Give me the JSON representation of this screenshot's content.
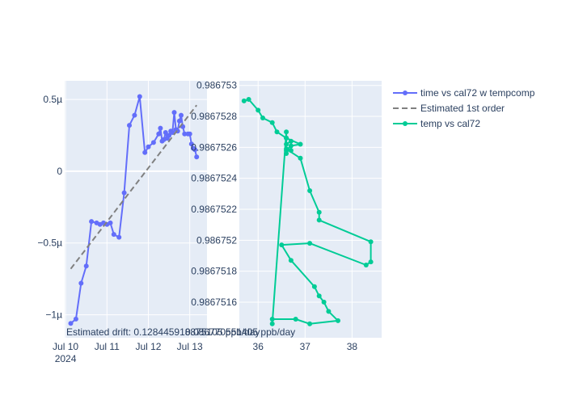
{
  "chart_data": [
    {
      "type": "line",
      "panel": "left",
      "x_type": "date",
      "xlim": [
        "2024-07-09T23:30",
        "2024-07-13T10:00"
      ],
      "ylim": [
        -1.16,
        0.63
      ],
      "y_ticks": [
        {
          "value": 0.5,
          "label": "0.5µ"
        },
        {
          "value": 0,
          "label": "0"
        },
        {
          "value": -0.5,
          "label": "−0.5µ"
        },
        {
          "value": -1,
          "label": "−1µ"
        }
      ],
      "x_ticks": [
        {
          "value": "2024-07-10T00:00",
          "label": "Jul 10",
          "sublabel": "2024"
        },
        {
          "value": "2024-07-11T00:00",
          "label": "Jul 11"
        },
        {
          "value": "2024-07-12T00:00",
          "label": "Jul 12"
        },
        {
          "value": "2024-07-13T00:00",
          "label": "Jul 13"
        }
      ],
      "series": [
        {
          "name": "time vs cal72 w tempcomp",
          "color": "#636efa",
          "mode": "lines+markers",
          "points": [
            [
              "2024-07-10T03:00",
              -1.06
            ],
            [
              "2024-07-10T06:00",
              -1.03
            ],
            [
              "2024-07-10T09:00",
              -0.78
            ],
            [
              "2024-07-10T12:00",
              -0.66
            ],
            [
              "2024-07-10T15:00",
              -0.35
            ],
            [
              "2024-07-10T18:00",
              -0.36
            ],
            [
              "2024-07-10T20:00",
              -0.37
            ],
            [
              "2024-07-10T22:00",
              -0.36
            ],
            [
              "2024-07-11T00:00",
              -0.37
            ],
            [
              "2024-07-11T02:00",
              -0.36
            ],
            [
              "2024-07-11T04:00",
              -0.44
            ],
            [
              "2024-07-11T07:00",
              -0.46
            ],
            [
              "2024-07-11T10:00",
              -0.15
            ],
            [
              "2024-07-11T13:00",
              0.32
            ],
            [
              "2024-07-11T16:00",
              0.39
            ],
            [
              "2024-07-11T19:00",
              0.52
            ],
            [
              "2024-07-11T22:00",
              0.13
            ],
            [
              "2024-07-12T00:00",
              0.17
            ],
            [
              "2024-07-12T03:00",
              0.2
            ],
            [
              "2024-07-12T06:00",
              0.26
            ],
            [
              "2024-07-12T07:00",
              0.3
            ],
            [
              "2024-07-12T08:00",
              0.21
            ],
            [
              "2024-07-12T09:00",
              0.22
            ],
            [
              "2024-07-12T10:00",
              0.27
            ],
            [
              "2024-07-12T11:00",
              0.23
            ],
            [
              "2024-07-12T12:00",
              0.25
            ],
            [
              "2024-07-12T13:00",
              0.28
            ],
            [
              "2024-07-12T14:00",
              0.27
            ],
            [
              "2024-07-12T15:00",
              0.41
            ],
            [
              "2024-07-12T16:00",
              0.29
            ],
            [
              "2024-07-12T17:00",
              0.28
            ],
            [
              "2024-07-12T18:00",
              0.35
            ],
            [
              "2024-07-12T19:00",
              0.39
            ],
            [
              "2024-07-12T20:00",
              0.31
            ],
            [
              "2024-07-12T21:00",
              0.26
            ],
            [
              "2024-07-12T23:00",
              0.26
            ],
            [
              "2024-07-13T00:00",
              0.26
            ],
            [
              "2024-07-13T01:00",
              0.19
            ],
            [
              "2024-07-13T02:00",
              0.16
            ],
            [
              "2024-07-13T03:00",
              0.15
            ],
            [
              "2024-07-13T04:00",
              0.1
            ]
          ]
        },
        {
          "name": "Estimated 1st order",
          "color": "#808080",
          "mode": "dash",
          "points": [
            [
              "2024-07-10T03:00",
              -0.68
            ],
            [
              "2024-07-13T04:00",
              0.46
            ]
          ]
        }
      ],
      "annotation": "Estimated drift:  0.128445918875105 ppb/day"
    },
    {
      "type": "line",
      "panel": "right",
      "xlim": [
        35.6,
        38.63
      ],
      "ylim": [
        0.98675137,
        0.98675303
      ],
      "x_ticks": [
        {
          "value": 36,
          "label": "36"
        },
        {
          "value": 37,
          "label": "37"
        },
        {
          "value": 38,
          "label": "38"
        }
      ],
      "y_ticks": [
        {
          "value": 0.986753,
          "label": "0.986753"
        },
        {
          "value": 0.9867528,
          "label": "0.9867528"
        },
        {
          "value": 0.9867526,
          "label": "0.9867526"
        },
        {
          "value": 0.9867524,
          "label": "0.9867524"
        },
        {
          "value": 0.9867522,
          "label": "0.9867522"
        },
        {
          "value": 0.986752,
          "label": "0.986752"
        },
        {
          "value": 0.9867518,
          "label": "0.9867518"
        },
        {
          "value": 0.9867516,
          "label": "0.9867516"
        }
      ],
      "series": [
        {
          "name": "temp vs cal72",
          "color": "#00cc96",
          "mode": "lines+markers",
          "points": [
            [
              35.7,
              0.9867529
            ],
            [
              35.8,
              0.98675291
            ],
            [
              36.0,
              0.98675284
            ],
            [
              36.1,
              0.98675279
            ],
            [
              36.3,
              0.98675276
            ],
            [
              36.4,
              0.9867527
            ],
            [
              36.6,
              0.98675266
            ],
            [
              36.6,
              0.98675262
            ],
            [
              36.7,
              0.98675264
            ],
            [
              36.7,
              0.98675258
            ],
            [
              36.6,
              0.98675259
            ],
            [
              36.9,
              0.98675253
            ],
            [
              37.1,
              0.98675232
            ],
            [
              37.3,
              0.98675218
            ],
            [
              37.3,
              0.98675213
            ],
            [
              38.4,
              0.98675199
            ],
            [
              38.4,
              0.98675186
            ],
            [
              38.3,
              0.98675184
            ],
            [
              37.1,
              0.98675198
            ],
            [
              36.5,
              0.98675197
            ],
            [
              36.7,
              0.98675187
            ],
            [
              37.2,
              0.9867517
            ],
            [
              37.3,
              0.98675164
            ],
            [
              37.4,
              0.9867516
            ],
            [
              37.5,
              0.98675154
            ],
            [
              37.7,
              0.98675148
            ],
            [
              37.1,
              0.98675146
            ],
            [
              36.8,
              0.98675149
            ],
            [
              36.3,
              0.98675149
            ],
            [
              36.3,
              0.98675146
            ],
            [
              36.6,
              0.9867527
            ],
            [
              36.6,
              0.98675266
            ],
            [
              36.9,
              0.98675262
            ],
            [
              36.7,
              0.98675261
            ],
            [
              36.6,
              0.98675258
            ],
            [
              36.6,
              0.98675256
            ]
          ]
        }
      ],
      "annotation": "0.086770551405 ppb/day"
    }
  ],
  "legend": {
    "placement": "top-right",
    "items": [
      {
        "label": "time vs cal72 w tempcomp",
        "color": "#636efa",
        "style": "line-marker"
      },
      {
        "label": "Estimated 1st order",
        "color": "#808080",
        "style": "dash"
      },
      {
        "label": "temp vs cal72",
        "color": "#00cc96",
        "style": "line-marker"
      }
    ]
  },
  "colors": {
    "plot_bg": "#e5ecf6",
    "grid": "#ffffff",
    "text": "#2a3f5f"
  }
}
